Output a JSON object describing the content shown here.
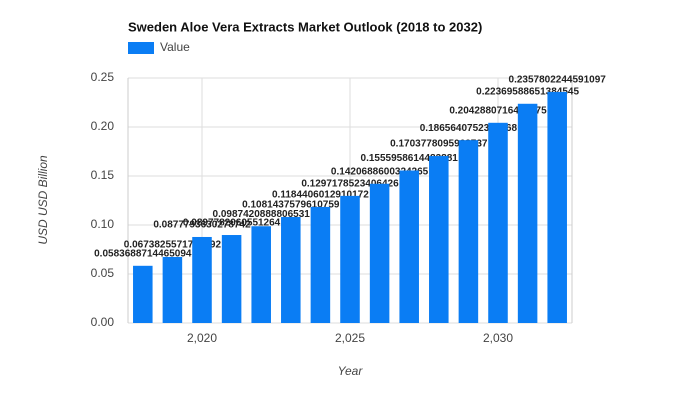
{
  "chart_data": {
    "type": "bar",
    "title": "Sweden Aloe Vera Extracts Market Outlook (2018 to 2032)",
    "x_label": "Year",
    "y_label": "USD USD Billion",
    "x": [
      2018,
      2019,
      2020,
      2021,
      2022,
      2023,
      2024,
      2025,
      2026,
      2027,
      2028,
      2029,
      2030,
      2031,
      2032
    ],
    "series": [
      {
        "name": "Value",
        "color": "#0a7df4",
        "values": [
          0.0583688714465094,
          0.0673825571796492,
          0.0877793630278742,
          0.0897782060551264,
          0.0987420888806531,
          0.1081437579610759,
          0.1184406012910172,
          0.1297178523406426,
          0.1420688600324265,
          0.1555958614483881,
          0.1703778095963737,
          0.1865640752373868,
          0.2042880716436775,
          0.22369588651384545,
          0.2357802244591097
        ]
      }
    ],
    "xlim": [
      2017.5,
      2032.5
    ],
    "xticks": [
      {
        "value": 2020,
        "label": "2,020"
      },
      {
        "value": 2025,
        "label": "2,025"
      },
      {
        "value": 2030,
        "label": "2,030"
      }
    ],
    "ylim": [
      0,
      0.25
    ],
    "yticks": [
      {
        "value": 0,
        "label": "0.00"
      },
      {
        "value": 0.05,
        "label": "0.05"
      },
      {
        "value": 0.1,
        "label": "0.10"
      },
      {
        "value": 0.15,
        "label": "0.15"
      },
      {
        "value": 0.2,
        "label": "0.20"
      },
      {
        "value": 0.25,
        "label": "0.25"
      }
    ],
    "grid": true,
    "legend": "top-left"
  }
}
